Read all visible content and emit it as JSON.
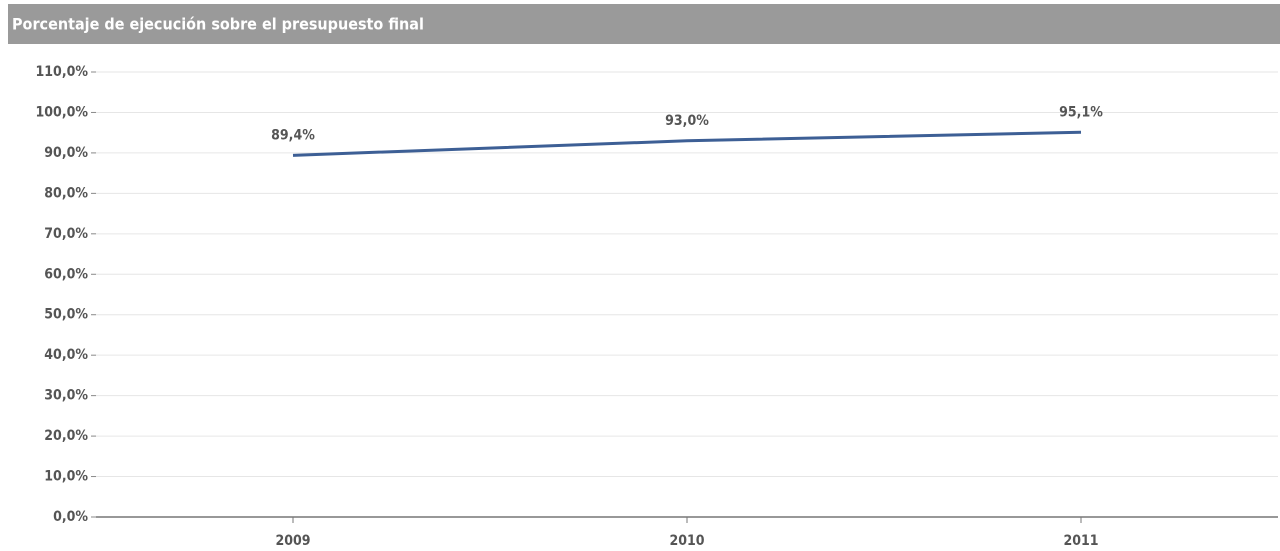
{
  "chart_data": {
    "type": "line",
    "title": "Porcentaje de ejecución sobre el presupuesto final",
    "categories": [
      "2009",
      "2010",
      "2011"
    ],
    "values": [
      89.4,
      93.0,
      95.1
    ],
    "value_labels": [
      "89,4%",
      "93,0%",
      "95,1%"
    ],
    "color": "#3d5f95",
    "ylim": [
      0,
      110
    ],
    "yticks": [
      {
        "value": 0,
        "label": "0,0%"
      },
      {
        "value": 10,
        "label": "10,0%"
      },
      {
        "value": 20,
        "label": "20,0%"
      },
      {
        "value": 30,
        "label": "30,0%"
      },
      {
        "value": 40,
        "label": "40,0%"
      },
      {
        "value": 50,
        "label": "50,0%"
      },
      {
        "value": 60,
        "label": "60,0%"
      },
      {
        "value": 70,
        "label": "70,0%"
      },
      {
        "value": 80,
        "label": "80,0%"
      },
      {
        "value": 90,
        "label": "90,0%"
      },
      {
        "value": 100,
        "label": "100,0%"
      },
      {
        "value": 110,
        "label": "110,0%"
      }
    ],
    "grid": true
  }
}
